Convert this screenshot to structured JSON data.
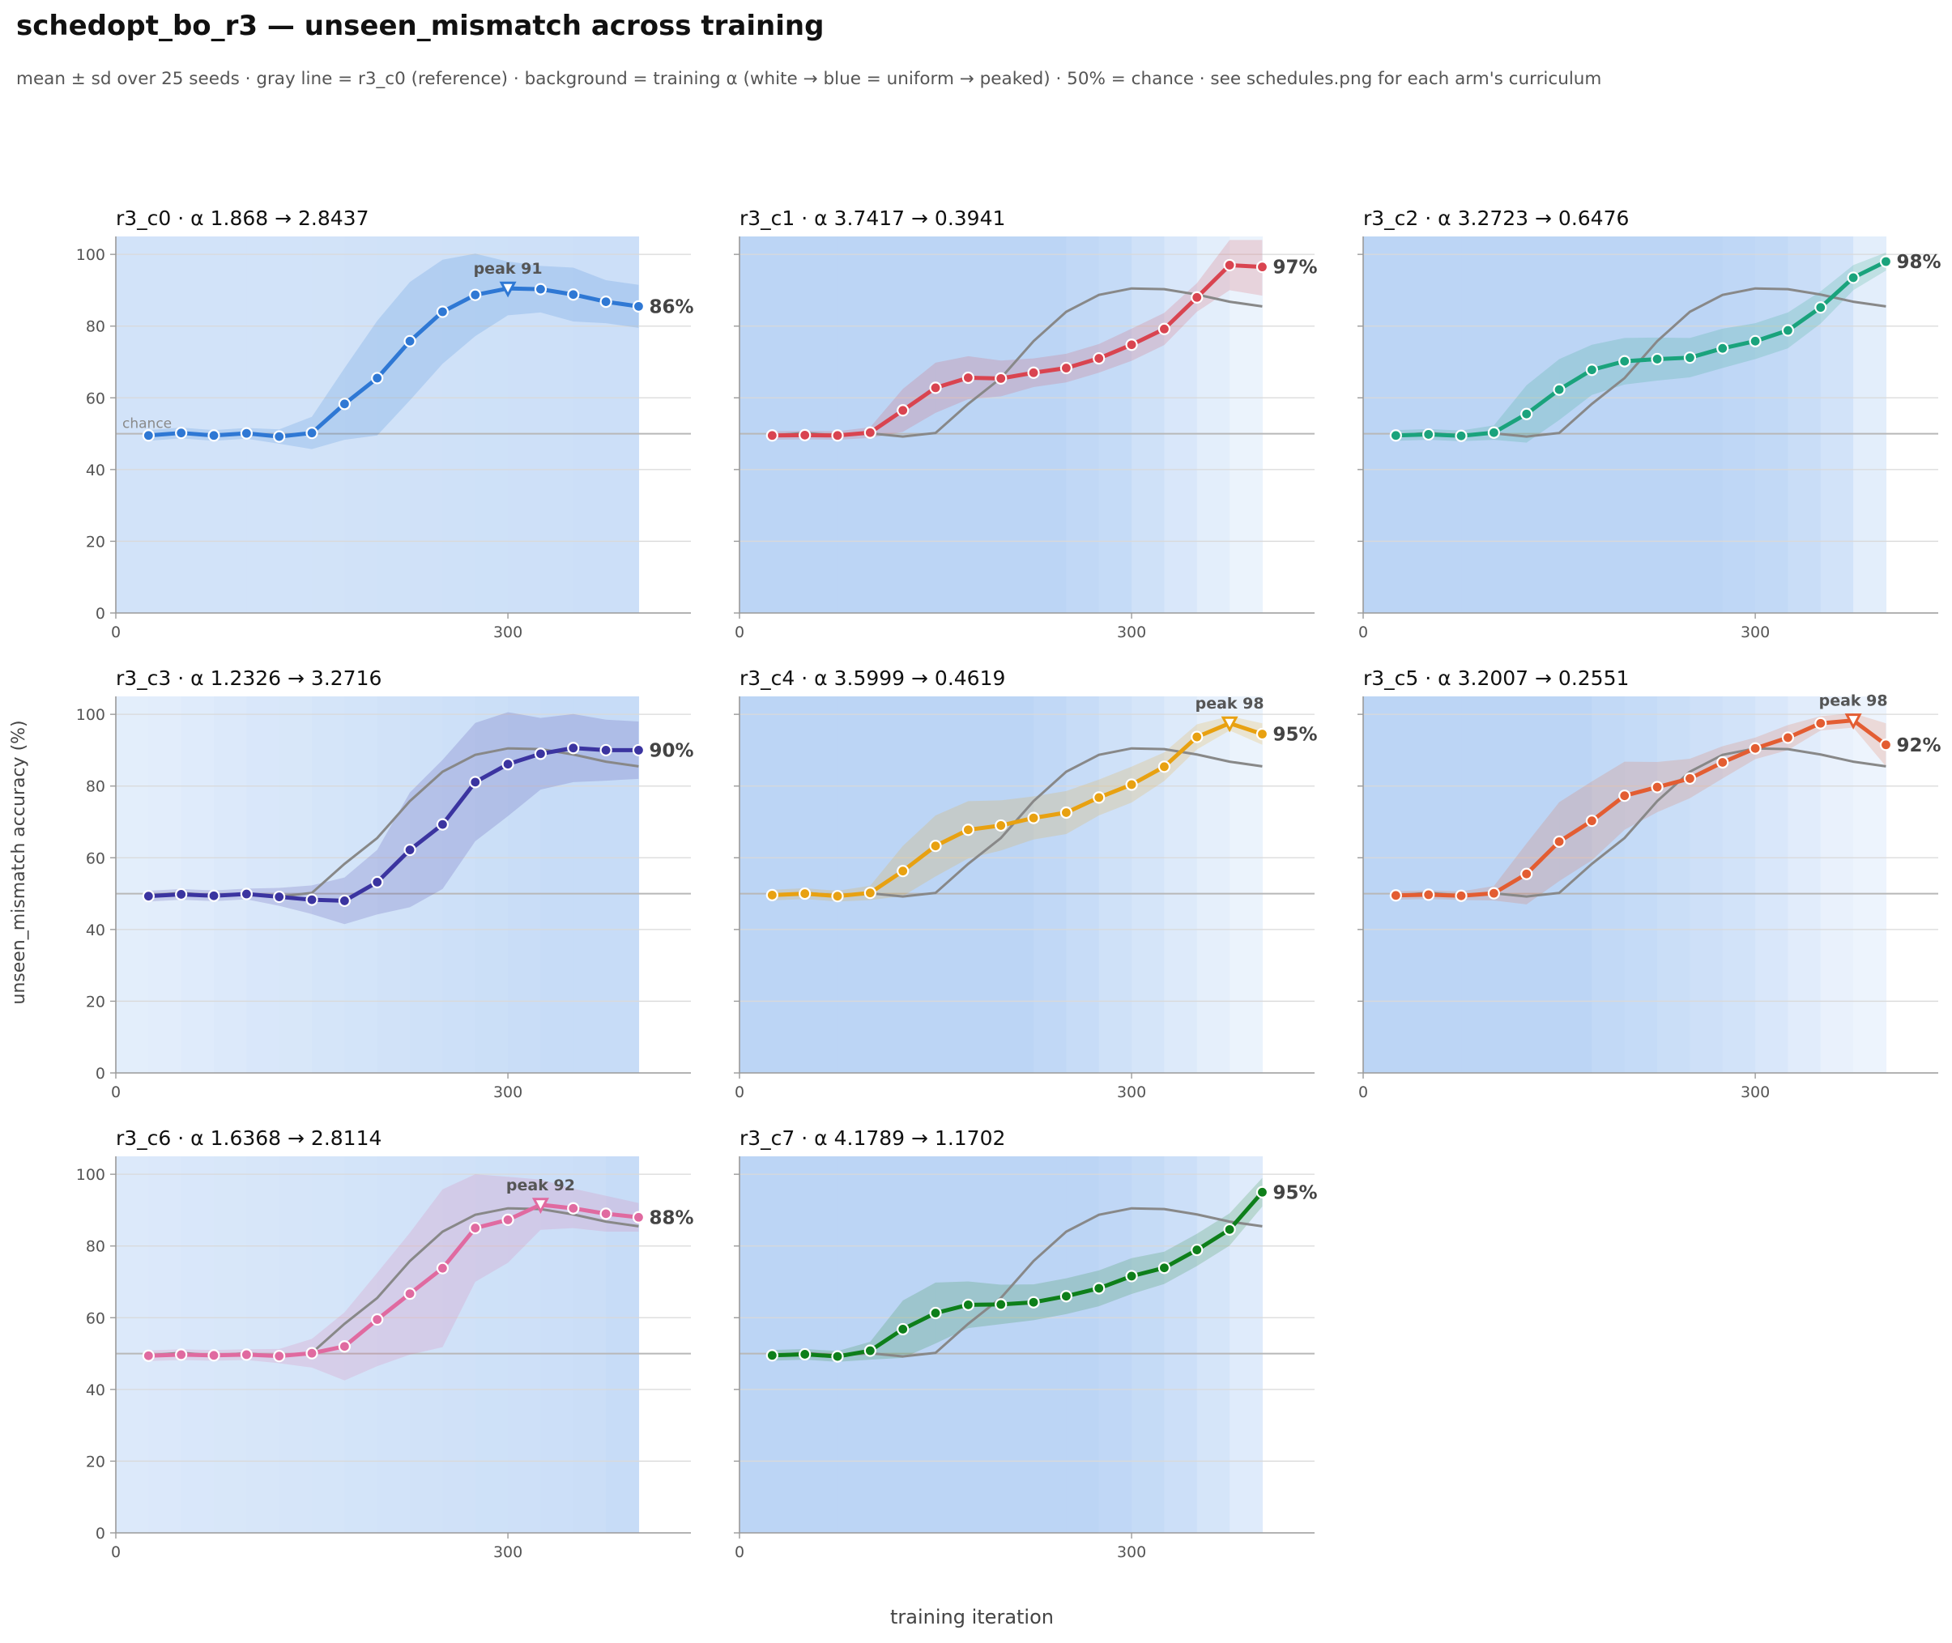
{
  "figure": {
    "title": "schedopt_bo_r3 — unseen_mismatch across training",
    "subtitle": "mean ± sd over 25 seeds · gray line = r3_c0 (reference) · background = training α (white → blue = uniform → peaked) · 50% = chance · see schedules.png for each arm's curriculum",
    "ylabel": "unseen_mismatch accuracy (%)",
    "xlabel": "training iteration",
    "chance_label": "chance"
  },
  "chart_data": [
    {
      "type": "line",
      "name": "r3_c0",
      "title": "r3_c0   ·   α 1.868 → 2.8437",
      "color": "#2f78d4",
      "xlim": [
        0,
        440
      ],
      "ylim": [
        0,
        105
      ],
      "xticks": [
        0,
        300
      ],
      "yticks": [
        0,
        20,
        40,
        60,
        80,
        100
      ],
      "x": [
        25,
        50,
        75,
        100,
        125,
        150,
        175,
        200,
        225,
        250,
        275,
        300,
        325,
        350,
        375,
        400
      ],
      "y": [
        49.5,
        50.2,
        49.5,
        50.1,
        49.2,
        50.2,
        58.3,
        65.5,
        75.8,
        84,
        88.7,
        90.5,
        90.3,
        88.8,
        86.8,
        85.5
      ],
      "sd": [
        1.5,
        1.5,
        1.5,
        1.5,
        2,
        4.5,
        10,
        16,
        16.5,
        14.5,
        11.5,
        7.5,
        6.5,
        7.5,
        6,
        6
      ],
      "peak": {
        "label": "peak 91",
        "x": 300,
        "y": 90.5
      },
      "end_label": "86%",
      "background": [
        0.45,
        0.45,
        0.45,
        0.45,
        0.45,
        0.45,
        0.46,
        0.47,
        0.48,
        0.49,
        0.5,
        0.51,
        0.52,
        0.53,
        0.54,
        0.55
      ]
    },
    {
      "type": "line",
      "name": "r3_c1",
      "title": "r3_c1   ·   α 3.7417 → 0.3941",
      "color": "#d94450",
      "xlim": [
        0,
        440
      ],
      "ylim": [
        0,
        105
      ],
      "xticks": [
        0,
        300
      ],
      "yticks": [
        0,
        20,
        40,
        60,
        80,
        100
      ],
      "x": [
        25,
        50,
        75,
        100,
        125,
        150,
        175,
        200,
        225,
        250,
        275,
        300,
        325,
        350,
        375,
        400
      ],
      "y": [
        49.5,
        49.6,
        49.5,
        50.3,
        56.5,
        62.8,
        65.6,
        65.4,
        67,
        68.3,
        71,
        74.8,
        79.2,
        88,
        97,
        96.5
      ],
      "sd": [
        1.2,
        1.2,
        1.2,
        1.5,
        6,
        7,
        6,
        5,
        4,
        4,
        4,
        4.5,
        4.5,
        4,
        7,
        8
      ],
      "peak": null,
      "end_label": "97%",
      "background": [
        0.8,
        0.8,
        0.8,
        0.8,
        0.8,
        0.8,
        0.8,
        0.8,
        0.8,
        0.8,
        0.72,
        0.65,
        0.5,
        0.35,
        0.18,
        0.06
      ]
    },
    {
      "type": "line",
      "name": "r3_c2",
      "title": "r3_c2   ·   α 3.2723 → 0.6476",
      "color": "#1aa37c",
      "xlim": [
        0,
        440
      ],
      "ylim": [
        0,
        105
      ],
      "xticks": [
        0,
        300
      ],
      "yticks": [
        0,
        20,
        40,
        60,
        80,
        100
      ],
      "x": [
        25,
        50,
        75,
        100,
        125,
        150,
        175,
        200,
        225,
        250,
        275,
        300,
        325,
        350,
        375,
        400
      ],
      "y": [
        49.5,
        49.8,
        49.4,
        50.3,
        55.5,
        62.3,
        67.8,
        70.2,
        70.8,
        71.2,
        73.8,
        75.8,
        78.8,
        85.2,
        93.5,
        98
      ],
      "sd": [
        1.5,
        1.5,
        1.5,
        2,
        8,
        8.5,
        7,
        6.5,
        6,
        5.5,
        5.5,
        5,
        5,
        4.5,
        3.5,
        2.5
      ],
      "peak": null,
      "end_label": "98%",
      "background": [
        0.8,
        0.8,
        0.8,
        0.8,
        0.8,
        0.8,
        0.8,
        0.8,
        0.8,
        0.8,
        0.8,
        0.75,
        0.7,
        0.6,
        0.45,
        0.18
      ]
    },
    {
      "type": "line",
      "name": "r3_c3",
      "title": "r3_c3   ·   α 1.2326 → 3.2716",
      "color": "#3b34a0",
      "xlim": [
        0,
        440
      ],
      "ylim": [
        0,
        105
      ],
      "xticks": [
        0,
        300
      ],
      "yticks": [
        0,
        20,
        40,
        60,
        80,
        100
      ],
      "x": [
        25,
        50,
        75,
        100,
        125,
        150,
        175,
        200,
        225,
        250,
        275,
        300,
        325,
        350,
        375,
        400
      ],
      "y": [
        49.3,
        49.8,
        49.4,
        49.9,
        49.1,
        48.3,
        48,
        53.2,
        62.2,
        69.3,
        81.1,
        86.1,
        89,
        90.6,
        90,
        90
      ],
      "sd": [
        1.5,
        1.5,
        1.5,
        1.5,
        2.5,
        4,
        6.5,
        9,
        16,
        18,
        16.5,
        14.5,
        10,
        9.5,
        8.5,
        8
      ],
      "peak": null,
      "end_label": "90%",
      "background": [
        0.18,
        0.21,
        0.25,
        0.3,
        0.34,
        0.36,
        0.4,
        0.43,
        0.47,
        0.5,
        0.53,
        0.56,
        0.59,
        0.62,
        0.63,
        0.63
      ]
    },
    {
      "type": "line",
      "name": "r3_c4",
      "title": "r3_c4   ·   α 3.5999 → 0.4619",
      "color": "#e8a111",
      "xlim": [
        0,
        440
      ],
      "ylim": [
        0,
        105
      ],
      "xticks": [
        0,
        300
      ],
      "yticks": [
        0,
        20,
        40,
        60,
        80,
        100
      ],
      "x": [
        25,
        50,
        75,
        100,
        125,
        150,
        175,
        200,
        225,
        250,
        275,
        300,
        325,
        350,
        375,
        400
      ],
      "y": [
        49.6,
        50,
        49.3,
        50.2,
        56.3,
        63.3,
        67.8,
        69,
        71.1,
        72.6,
        76.8,
        80.4,
        85.4,
        93.7,
        97.5,
        94.5
      ],
      "sd": [
        1.5,
        1.5,
        1.5,
        2,
        7,
        8.5,
        8,
        7,
        6,
        6,
        5,
        5,
        4,
        3.5,
        2,
        3
      ],
      "peak": {
        "label": "peak 98",
        "x": 375,
        "y": 97.5
      },
      "end_label": "95%",
      "background": [
        0.8,
        0.8,
        0.8,
        0.8,
        0.8,
        0.8,
        0.8,
        0.8,
        0.8,
        0.72,
        0.62,
        0.5,
        0.4,
        0.28,
        0.16,
        0.06
      ]
    },
    {
      "type": "line",
      "name": "r3_c5",
      "title": "r3_c5   ·   α 3.2007 → 0.2551",
      "color": "#e35d32",
      "xlim": [
        0,
        440
      ],
      "ylim": [
        0,
        105
      ],
      "xticks": [
        0,
        300
      ],
      "yticks": [
        0,
        20,
        40,
        60,
        80,
        100
      ],
      "x": [
        25,
        50,
        75,
        100,
        125,
        150,
        175,
        200,
        225,
        250,
        275,
        300,
        325,
        350,
        375,
        400
      ],
      "y": [
        49.5,
        49.7,
        49.4,
        50.1,
        55.5,
        64.5,
        70.3,
        77.3,
        79.7,
        82.1,
        86.6,
        90.5,
        93.5,
        97.5,
        98.3,
        91.5
      ],
      "sd": [
        1.2,
        1.2,
        1.2,
        2,
        8.5,
        11,
        11,
        9.5,
        7,
        5.5,
        4.5,
        3,
        3.5,
        2,
        2,
        6
      ],
      "peak": {
        "label": "peak 98",
        "x": 375,
        "y": 98.3
      },
      "end_label": "92%",
      "background": [
        0.8,
        0.8,
        0.8,
        0.8,
        0.8,
        0.8,
        0.8,
        0.7,
        0.65,
        0.58,
        0.52,
        0.45,
        0.35,
        0.22,
        0.1,
        0.03
      ]
    },
    {
      "type": "line",
      "name": "r3_c6",
      "title": "r3_c6   ·   α 1.6368 → 2.8114",
      "color": "#e06aa0",
      "xlim": [
        0,
        440
      ],
      "ylim": [
        0,
        105
      ],
      "xticks": [
        0,
        300
      ],
      "yticks": [
        0,
        20,
        40,
        60,
        80,
        100
      ],
      "x": [
        25,
        50,
        75,
        100,
        125,
        150,
        175,
        200,
        225,
        250,
        275,
        300,
        325,
        350,
        375,
        400
      ],
      "y": [
        49.4,
        49.7,
        49.5,
        49.7,
        49.3,
        50.1,
        52,
        59.5,
        66.7,
        73.8,
        85,
        87.3,
        91.5,
        90.5,
        89,
        88
      ],
      "sd": [
        1.5,
        1.5,
        1.5,
        1.5,
        2,
        4,
        9.5,
        13,
        17,
        22,
        15,
        12,
        7,
        5.5,
        5,
        4
      ],
      "peak": {
        "label": "peak 92",
        "x": 325,
        "y": 91.5
      },
      "end_label": "88%",
      "background": [
        0.3,
        0.32,
        0.34,
        0.36,
        0.38,
        0.39,
        0.41,
        0.43,
        0.45,
        0.47,
        0.49,
        0.51,
        0.52,
        0.54,
        0.57,
        0.62
      ]
    },
    {
      "type": "line",
      "name": "r3_c7",
      "title": "r3_c7   ·   α 4.1789 → 1.1702",
      "color": "#0e7f1a",
      "xlim": [
        0,
        440
      ],
      "ylim": [
        0,
        105
      ],
      "xticks": [
        0,
        300
      ],
      "yticks": [
        0,
        20,
        40,
        60,
        80,
        100
      ],
      "x": [
        25,
        50,
        75,
        100,
        125,
        150,
        175,
        200,
        225,
        250,
        275,
        300,
        325,
        350,
        375,
        400
      ],
      "y": [
        49.5,
        49.8,
        49.2,
        50.8,
        56.8,
        61.3,
        63.6,
        63.7,
        64.3,
        66,
        68.2,
        71.6,
        73.9,
        78.9,
        84.6,
        95
      ],
      "sd": [
        1.5,
        1.5,
        1.5,
        2.5,
        8,
        8.5,
        6.5,
        5.5,
        5,
        5,
        5,
        5,
        4.5,
        4.5,
        4.5,
        4
      ],
      "peak": null,
      "end_label": "95%",
      "background": [
        0.8,
        0.8,
        0.8,
        0.8,
        0.8,
        0.8,
        0.8,
        0.8,
        0.8,
        0.8,
        0.8,
        0.74,
        0.66,
        0.55,
        0.4,
        0.25
      ]
    }
  ]
}
